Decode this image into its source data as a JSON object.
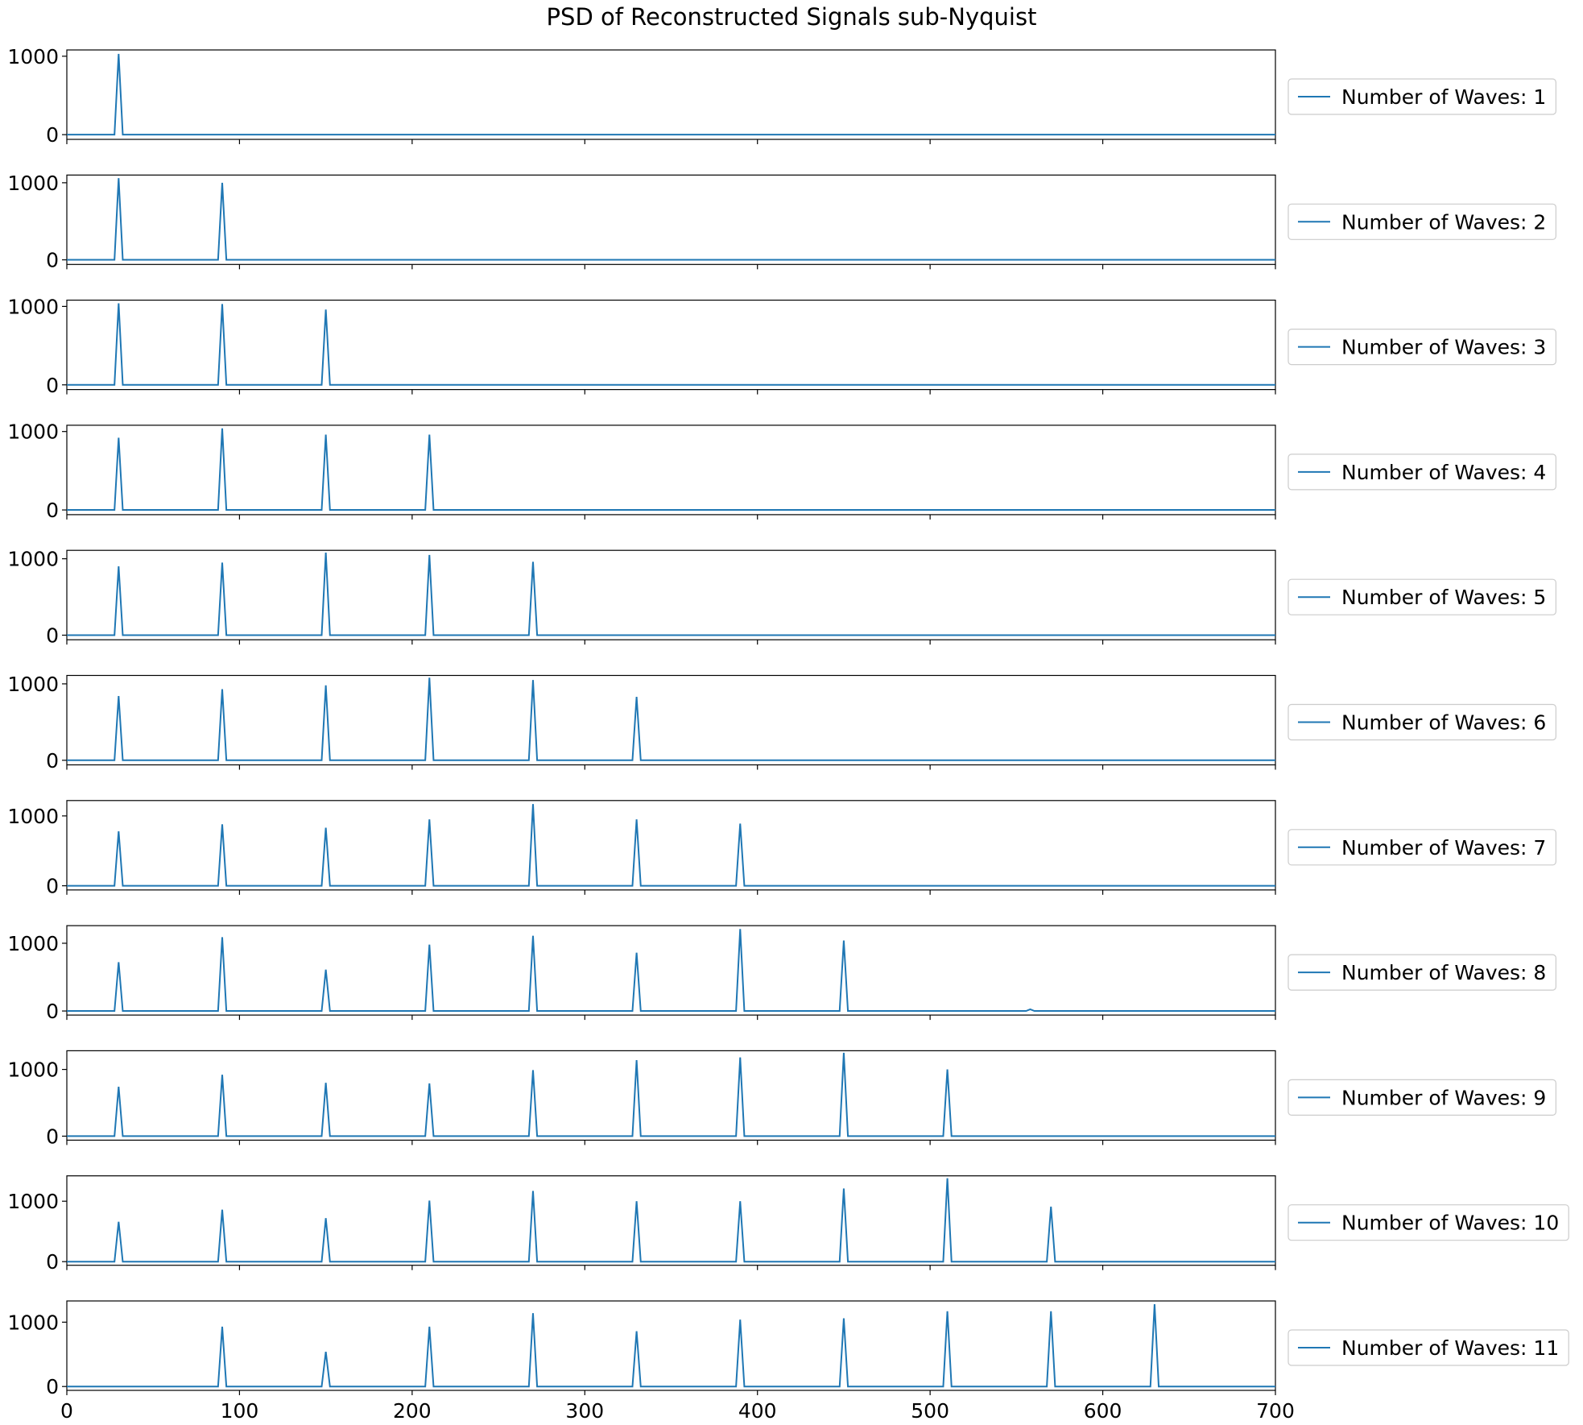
{
  "chart_data": {
    "type": "line",
    "title": "PSD of Reconstructed Signals sub-Nyquist",
    "xlabel": "",
    "ylabel": "",
    "xlim": [
      0,
      700
    ],
    "x_ticks": [
      0,
      100,
      200,
      300,
      400,
      500,
      600,
      700
    ],
    "x_tick_labels": [
      "0",
      "100",
      "200",
      "300",
      "400",
      "500",
      "600",
      "700"
    ],
    "y_ticks": [
      0,
      1000
    ],
    "y_tick_labels": [
      "0",
      "1000"
    ],
    "legend_placement": "right, outside each panel",
    "line_color": "#1f77b4",
    "series": [
      {
        "name": "Number of Waves: 1",
        "ylim": [
          -60,
          1080
        ],
        "peaks": [
          {
            "x": 30,
            "y": 1030
          }
        ]
      },
      {
        "name": "Number of Waves: 2",
        "ylim": [
          -60,
          1100
        ],
        "peaks": [
          {
            "x": 30,
            "y": 1060
          },
          {
            "x": 90,
            "y": 1000
          }
        ]
      },
      {
        "name": "Number of Waves: 3",
        "ylim": [
          -60,
          1080
        ],
        "peaks": [
          {
            "x": 30,
            "y": 1040
          },
          {
            "x": 90,
            "y": 1030
          },
          {
            "x": 150,
            "y": 960
          }
        ]
      },
      {
        "name": "Number of Waves: 4",
        "ylim": [
          -60,
          1080
        ],
        "peaks": [
          {
            "x": 30,
            "y": 920
          },
          {
            "x": 90,
            "y": 1040
          },
          {
            "x": 150,
            "y": 960
          },
          {
            "x": 210,
            "y": 960
          }
        ]
      },
      {
        "name": "Number of Waves: 5",
        "ylim": [
          -60,
          1110
        ],
        "peaks": [
          {
            "x": 30,
            "y": 900
          },
          {
            "x": 90,
            "y": 950
          },
          {
            "x": 150,
            "y": 1080
          },
          {
            "x": 210,
            "y": 1050
          },
          {
            "x": 270,
            "y": 960
          }
        ]
      },
      {
        "name": "Number of Waves: 6",
        "ylim": [
          -60,
          1110
        ],
        "peaks": [
          {
            "x": 30,
            "y": 840
          },
          {
            "x": 90,
            "y": 930
          },
          {
            "x": 150,
            "y": 980
          },
          {
            "x": 210,
            "y": 1080
          },
          {
            "x": 270,
            "y": 1050
          },
          {
            "x": 330,
            "y": 830
          }
        ]
      },
      {
        "name": "Number of Waves: 7",
        "ylim": [
          -60,
          1220
        ],
        "peaks": [
          {
            "x": 30,
            "y": 780
          },
          {
            "x": 90,
            "y": 880
          },
          {
            "x": 150,
            "y": 830
          },
          {
            "x": 210,
            "y": 950
          },
          {
            "x": 270,
            "y": 1170
          },
          {
            "x": 330,
            "y": 950
          },
          {
            "x": 390,
            "y": 890
          }
        ]
      },
      {
        "name": "Number of Waves: 8",
        "ylim": [
          -60,
          1260
        ],
        "peaks": [
          {
            "x": 30,
            "y": 720
          },
          {
            "x": 90,
            "y": 1090
          },
          {
            "x": 150,
            "y": 610
          },
          {
            "x": 210,
            "y": 980
          },
          {
            "x": 270,
            "y": 1110
          },
          {
            "x": 330,
            "y": 860
          },
          {
            "x": 390,
            "y": 1210
          },
          {
            "x": 450,
            "y": 1040
          },
          {
            "x": 558,
            "y": 25
          }
        ]
      },
      {
        "name": "Number of Waves: 9",
        "ylim": [
          -60,
          1280
        ],
        "peaks": [
          {
            "x": 30,
            "y": 740
          },
          {
            "x": 90,
            "y": 920
          },
          {
            "x": 150,
            "y": 800
          },
          {
            "x": 210,
            "y": 790
          },
          {
            "x": 270,
            "y": 990
          },
          {
            "x": 330,
            "y": 1140
          },
          {
            "x": 390,
            "y": 1180
          },
          {
            "x": 450,
            "y": 1250
          },
          {
            "x": 510,
            "y": 1000
          }
        ]
      },
      {
        "name": "Number of Waves: 10",
        "ylim": [
          -60,
          1420
        ],
        "peaks": [
          {
            "x": 30,
            "y": 660
          },
          {
            "x": 90,
            "y": 860
          },
          {
            "x": 150,
            "y": 720
          },
          {
            "x": 210,
            "y": 1010
          },
          {
            "x": 270,
            "y": 1170
          },
          {
            "x": 330,
            "y": 1000
          },
          {
            "x": 390,
            "y": 1000
          },
          {
            "x": 450,
            "y": 1210
          },
          {
            "x": 510,
            "y": 1380
          },
          {
            "x": 570,
            "y": 910
          }
        ]
      },
      {
        "name": "Number of Waves: 11",
        "ylim": [
          -60,
          1330
        ],
        "peaks": [
          {
            "x": 90,
            "y": 930
          },
          {
            "x": 150,
            "y": 540
          },
          {
            "x": 210,
            "y": 930
          },
          {
            "x": 270,
            "y": 1140
          },
          {
            "x": 330,
            "y": 860
          },
          {
            "x": 390,
            "y": 1040
          },
          {
            "x": 450,
            "y": 1060
          },
          {
            "x": 510,
            "y": 1170
          },
          {
            "x": 570,
            "y": 1170
          },
          {
            "x": 630,
            "y": 1280
          }
        ]
      }
    ]
  }
}
